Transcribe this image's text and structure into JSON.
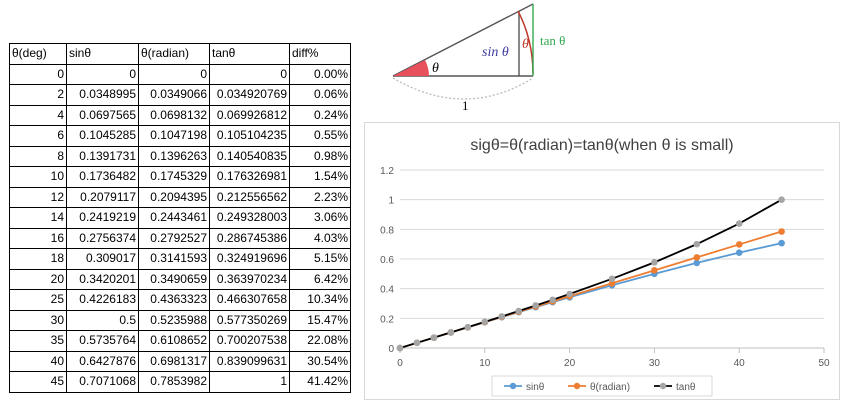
{
  "table": {
    "headers": [
      "θ(deg)",
      "sinθ",
      "θ(radian)",
      "tanθ",
      "diff%"
    ],
    "rows": [
      [
        "0",
        "0",
        "0",
        "0",
        "0.00%"
      ],
      [
        "2",
        "0.0348995",
        "0.0349066",
        "0.034920769",
        "0.06%"
      ],
      [
        "4",
        "0.0697565",
        "0.0698132",
        "0.069926812",
        "0.24%"
      ],
      [
        "6",
        "0.1045285",
        "0.1047198",
        "0.105104235",
        "0.55%"
      ],
      [
        "8",
        "0.1391731",
        "0.1396263",
        "0.140540835",
        "0.98%"
      ],
      [
        "10",
        "0.1736482",
        "0.1745329",
        "0.176326981",
        "1.54%"
      ],
      [
        "12",
        "0.2079117",
        "0.2094395",
        "0.212556562",
        "2.23%"
      ],
      [
        "14",
        "0.2419219",
        "0.2443461",
        "0.249328003",
        "3.06%"
      ],
      [
        "16",
        "0.2756374",
        "0.2792527",
        "0.286745386",
        "4.03%"
      ],
      [
        "18",
        "0.309017",
        "0.3141593",
        "0.324919696",
        "5.15%"
      ],
      [
        "20",
        "0.3420201",
        "0.3490659",
        "0.363970234",
        "6.42%"
      ],
      [
        "25",
        "0.4226183",
        "0.4363323",
        "0.466307658",
        "10.34%"
      ],
      [
        "30",
        "0.5",
        "0.5235988",
        "0.577350269",
        "15.47%"
      ],
      [
        "35",
        "0.5735764",
        "0.6108652",
        "0.700207538",
        "22.08%"
      ],
      [
        "40",
        "0.6427876",
        "0.6981317",
        "0.839099631",
        "30.54%"
      ],
      [
        "45",
        "0.7071068",
        "0.7853982",
        "1",
        "41.42%"
      ]
    ]
  },
  "diagram": {
    "theta_label": "θ",
    "sin_label": "sin θ",
    "theta_arc_label": "θ",
    "tan_label": "tan θ",
    "radius_label": "1",
    "colors": {
      "angle_fill": "#e8505b",
      "sin": "#3b3b9e",
      "tan": "#2fa84f",
      "arc_label": "#c0392b",
      "arc": "#bbbbbb"
    }
  },
  "chart_data": {
    "type": "scatter",
    "title": "sigθ=θ(radian)=tanθ(when θ is small)",
    "x": [
      0,
      2,
      4,
      6,
      8,
      10,
      12,
      14,
      16,
      18,
      20,
      25,
      30,
      35,
      40,
      45
    ],
    "series": [
      {
        "name": "sinθ",
        "color": "#5b9bd5",
        "values": [
          0,
          0.0348995,
          0.0697565,
          0.1045285,
          0.1391731,
          0.1736482,
          0.2079117,
          0.2419219,
          0.2756374,
          0.309017,
          0.3420201,
          0.4226183,
          0.5,
          0.5735764,
          0.6427876,
          0.7071068
        ]
      },
      {
        "name": "θ(radian)",
        "color": "#ed7d31",
        "values": [
          0,
          0.0349066,
          0.0698132,
          0.1047198,
          0.1396263,
          0.1745329,
          0.2094395,
          0.2443461,
          0.2792527,
          0.3141593,
          0.3490659,
          0.4363323,
          0.5235988,
          0.6108652,
          0.6981317,
          0.7853982
        ]
      },
      {
        "name": "tanθ",
        "color": "#000000",
        "marker_color": "#a5a5a5",
        "values": [
          0,
          0.034920769,
          0.069926812,
          0.105104235,
          0.140540835,
          0.176326981,
          0.212556562,
          0.249328003,
          0.286745386,
          0.324919696,
          0.363970234,
          0.466307658,
          0.577350269,
          0.700207538,
          0.839099631,
          1
        ]
      }
    ],
    "xlim": [
      0,
      50
    ],
    "ylim": [
      0,
      1.2
    ],
    "xticks": [
      "0",
      "10",
      "20",
      "30",
      "40",
      "50"
    ],
    "yticks": [
      "0",
      "0.2",
      "0.4",
      "0.6",
      "0.8",
      "1",
      "1.2"
    ],
    "grid": true,
    "legend": "bottom"
  }
}
